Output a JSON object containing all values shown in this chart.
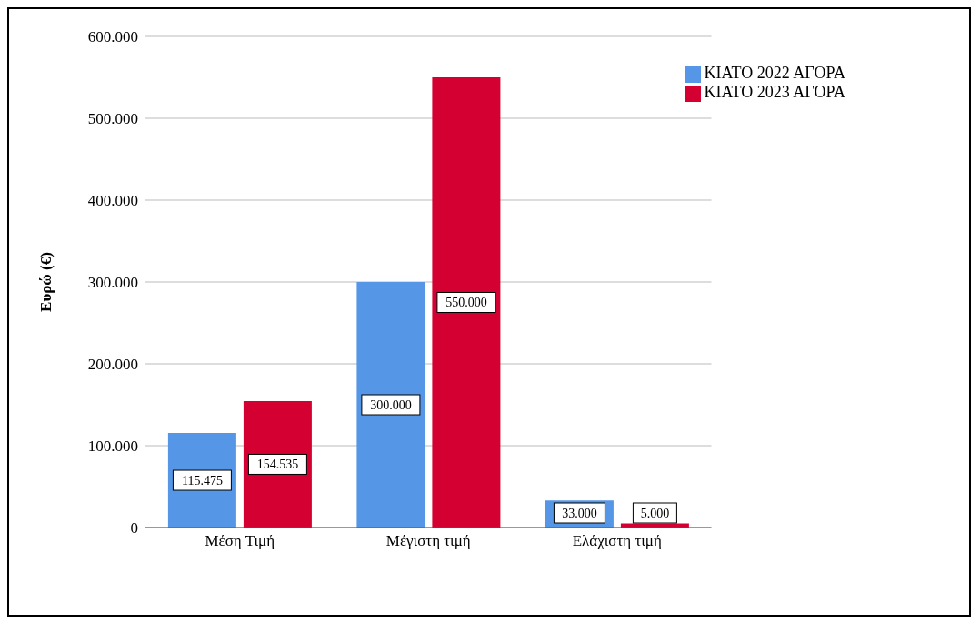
{
  "chart_data": {
    "type": "bar",
    "ylabel": "Ευρώ (€)",
    "categories": [
      "Μέση Τιμή",
      "Μέγιστη τιμή",
      "Ελάχιστη τιμή"
    ],
    "series": [
      {
        "name": "ΚΙΑΤΟ 2022 ΑΓΟΡΑ",
        "color": "#5596e6",
        "values": [
          115475,
          300000,
          33000
        ],
        "value_labels": [
          "115.475",
          "300.000",
          "33.000"
        ]
      },
      {
        "name": "ΚΙΑΤΟ 2023 ΑΓΟΡΑ",
        "color": "#d50032",
        "values": [
          154535,
          550000,
          5000
        ],
        "value_labels": [
          "154.535",
          "550.000",
          "5.000"
        ]
      }
    ],
    "ylim": [
      0,
      600000
    ],
    "yticks": [
      {
        "value": 0,
        "label": "0"
      },
      {
        "value": 100000,
        "label": "100.000"
      },
      {
        "value": 200000,
        "label": "200.000"
      },
      {
        "value": 300000,
        "label": "300.000"
      },
      {
        "value": 400000,
        "label": "400.000"
      },
      {
        "value": 500000,
        "label": "500.000"
      },
      {
        "value": 600000,
        "label": "600.000"
      }
    ],
    "grid": "y",
    "legend": "top right"
  }
}
